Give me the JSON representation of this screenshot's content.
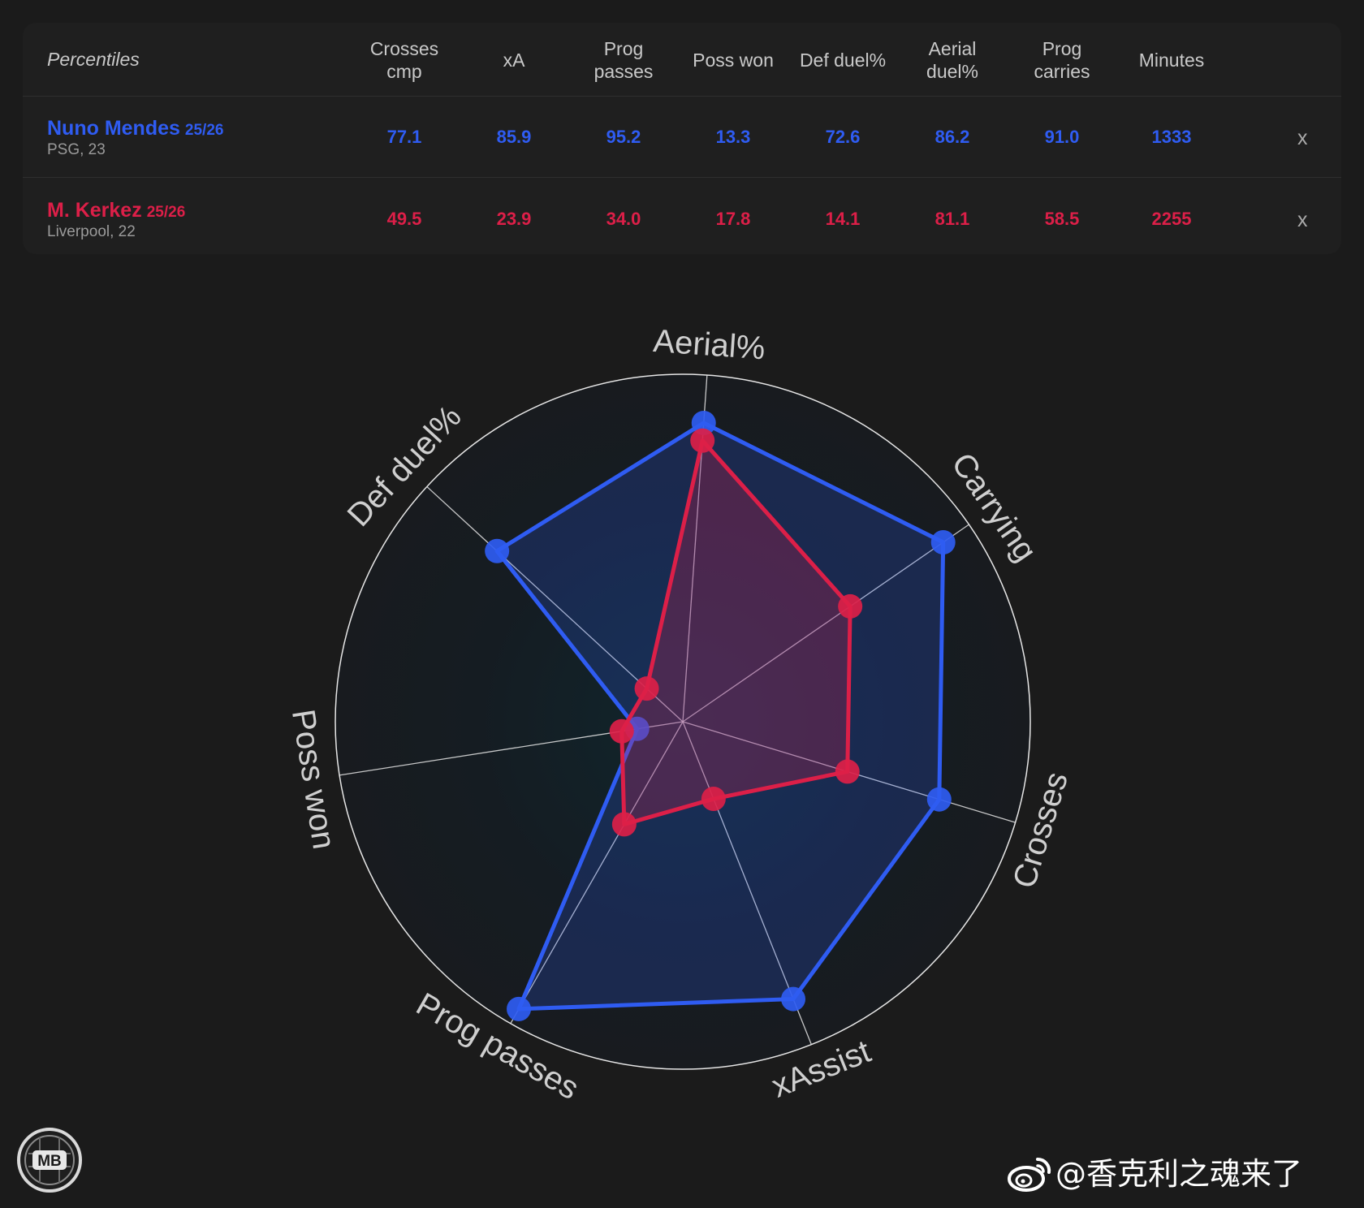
{
  "table": {
    "corner_label": "Percentiles",
    "columns": [
      {
        "line1": "Crosses",
        "line2": "cmp"
      },
      {
        "line1": "xA",
        "line2": ""
      },
      {
        "line1": "Prog",
        "line2": "passes"
      },
      {
        "line1": "Poss won",
        "line2": ""
      },
      {
        "line1": "Def duel%",
        "line2": ""
      },
      {
        "line1": "Aerial",
        "line2": "duel%"
      },
      {
        "line1": "Prog",
        "line2": "carries"
      },
      {
        "line1": "Minutes",
        "line2": ""
      }
    ],
    "rows": [
      {
        "name": "Nuno Mendes",
        "season": "25/26",
        "club": "PSG, 23",
        "values": [
          "77.1",
          "85.9",
          "95.2",
          "13.3",
          "72.6",
          "86.2",
          "91.0",
          "1333"
        ],
        "remove": "x"
      },
      {
        "name": "M. Kerkez",
        "season": "25/26",
        "club": "Liverpool, 22",
        "values": [
          "49.5",
          "23.9",
          "34.0",
          "17.8",
          "14.1",
          "81.1",
          "58.5",
          "2255"
        ],
        "remove": "x"
      }
    ]
  },
  "colors": {
    "player1": "#2f5cf2",
    "player2": "#dc1f48",
    "background": "#1b1b1b"
  },
  "chart_data": {
    "type": "radar",
    "axes": [
      "Aerial%",
      "Carrying",
      "Crosses",
      "xAssist",
      "Prog passes",
      "Poss won",
      "Def duel%"
    ],
    "range": [
      0,
      100
    ],
    "series": [
      {
        "name": "Nuno Mendes",
        "values": [
          86.2,
          91.0,
          77.1,
          85.9,
          95.2,
          13.3,
          72.6
        ]
      },
      {
        "name": "M. Kerkez",
        "values": [
          81.1,
          58.5,
          49.5,
          23.9,
          34.0,
          17.8,
          14.1
        ]
      }
    ]
  },
  "logo": {
    "text": "MB"
  },
  "watermark": {
    "icon": "weibo-icon",
    "text": "@香克利之魂来了"
  }
}
